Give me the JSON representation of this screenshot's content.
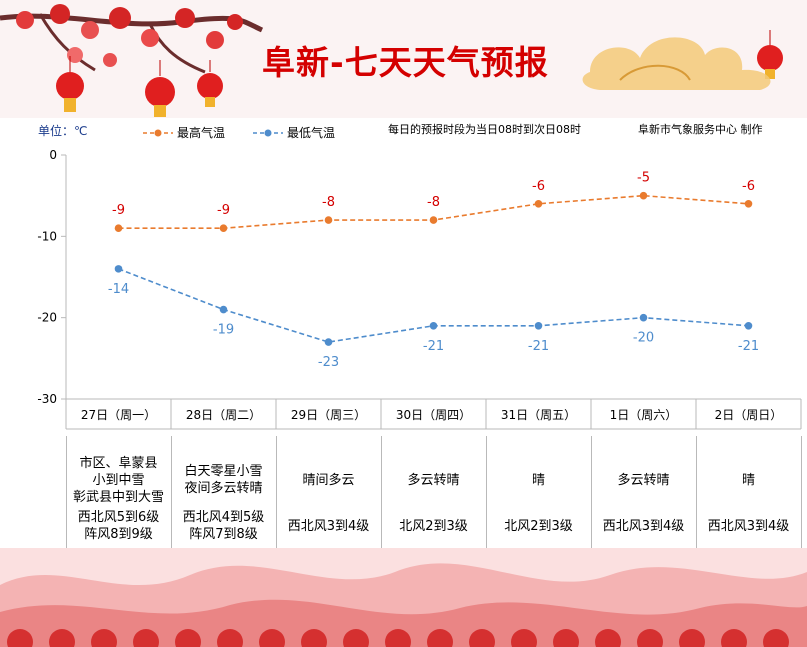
{
  "title": "阜新-七天天气预报",
  "unit_label": "单位：℃",
  "legend": {
    "high": "最高气温",
    "low": "最低气温"
  },
  "note": "每日的预报时段为当日08时到次日08时",
  "producer": "阜新市气象服务中心 制作",
  "colors": {
    "high": "#e97b2e",
    "low": "#4e8ccc",
    "title": "#d40000",
    "label_red": "#d40000"
  },
  "chart_data": {
    "type": "line",
    "categories": [
      "27日（周一）",
      "28日（周二）",
      "29日（周三）",
      "30日（周四）",
      "31日（周五）",
      "1日（周六）",
      "2日（周日）"
    ],
    "series": [
      {
        "name": "最高气温",
        "values": [
          -9,
          -9,
          -8,
          -8,
          -6,
          -5,
          -6
        ]
      },
      {
        "name": "最低气温",
        "values": [
          -14,
          -19,
          -23,
          -21,
          -21,
          -20,
          -21
        ]
      }
    ],
    "ylim": [
      -30,
      0
    ],
    "yticks": [
      0,
      -10,
      -20,
      -30
    ],
    "data_labels": {
      "high": [
        "-9",
        "-9",
        "-8",
        "-8",
        "-6",
        "-5",
        "-6"
      ],
      "low": [
        "-14",
        "-19",
        "-23",
        "-21",
        "-21",
        "-20",
        "-21"
      ]
    },
    "grid": false,
    "legend_position": "top"
  },
  "table": {
    "weather": [
      [
        "市区、阜蒙县",
        "小到中雪",
        "彰武县中到大雪"
      ],
      [
        "白天零星小雪",
        "夜间多云转晴"
      ],
      [
        "晴间多云"
      ],
      [
        "多云转晴"
      ],
      [
        "晴"
      ],
      [
        "多云转晴"
      ],
      [
        "晴"
      ]
    ],
    "wind": [
      [
        "西北风5到6级",
        "阵风8到9级"
      ],
      [
        "西北风4到5级",
        "阵风7到8级"
      ],
      [
        "西北风3到4级"
      ],
      [
        "北风2到3级"
      ],
      [
        "北风2到3级"
      ],
      [
        "西北风3到4级"
      ],
      [
        "西北风3到4级"
      ]
    ]
  }
}
